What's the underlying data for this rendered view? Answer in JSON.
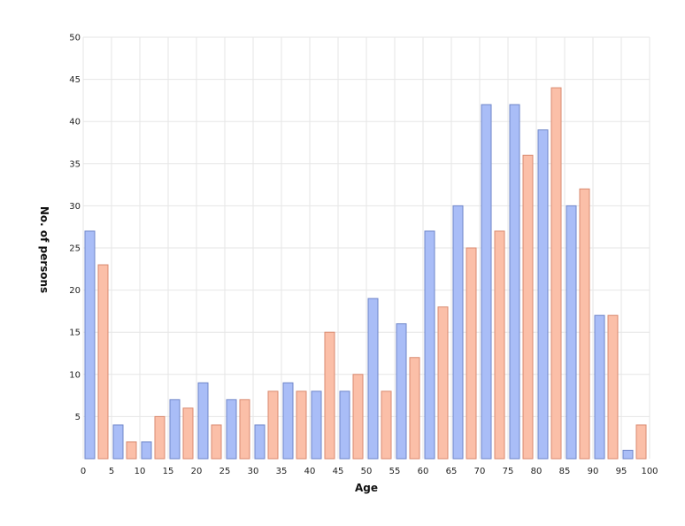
{
  "chart_data": {
    "type": "bar",
    "title": "",
    "xlabel": "Age",
    "ylabel": "No. of persons",
    "xlim": [
      0,
      100
    ],
    "ylim": [
      0,
      50
    ],
    "x_ticks": [
      "0",
      "5",
      "10",
      "15",
      "20",
      "25",
      "30",
      "35",
      "40",
      "45",
      "50",
      "55",
      "60",
      "65",
      "70",
      "75",
      "80",
      "85",
      "90",
      "95",
      "100"
    ],
    "y_ticks": [
      "5",
      "10",
      "15",
      "20",
      "25",
      "30",
      "35",
      "40",
      "45",
      "50"
    ],
    "grid": true,
    "legend": "none",
    "categories": [
      "0-5",
      "5-10",
      "10-15",
      "15-20",
      "20-25",
      "25-30",
      "30-35",
      "35-40",
      "40-45",
      "45-50",
      "50-55",
      "55-60",
      "60-65",
      "65-70",
      "70-75",
      "75-80",
      "80-85",
      "85-90",
      "90-95",
      "95-100"
    ],
    "series": [
      {
        "color": "#a9bdf7",
        "values": [
          27,
          4,
          2,
          7,
          9,
          7,
          4,
          9,
          8,
          8,
          19,
          16,
          27,
          30,
          42,
          42,
          39,
          30,
          17,
          1
        ]
      },
      {
        "color": "#fbbfa8",
        "values": [
          23,
          2,
          5,
          6,
          4,
          7,
          8,
          8,
          15,
          10,
          8,
          12,
          18,
          25,
          27,
          36,
          44,
          32,
          17,
          4
        ]
      }
    ]
  }
}
